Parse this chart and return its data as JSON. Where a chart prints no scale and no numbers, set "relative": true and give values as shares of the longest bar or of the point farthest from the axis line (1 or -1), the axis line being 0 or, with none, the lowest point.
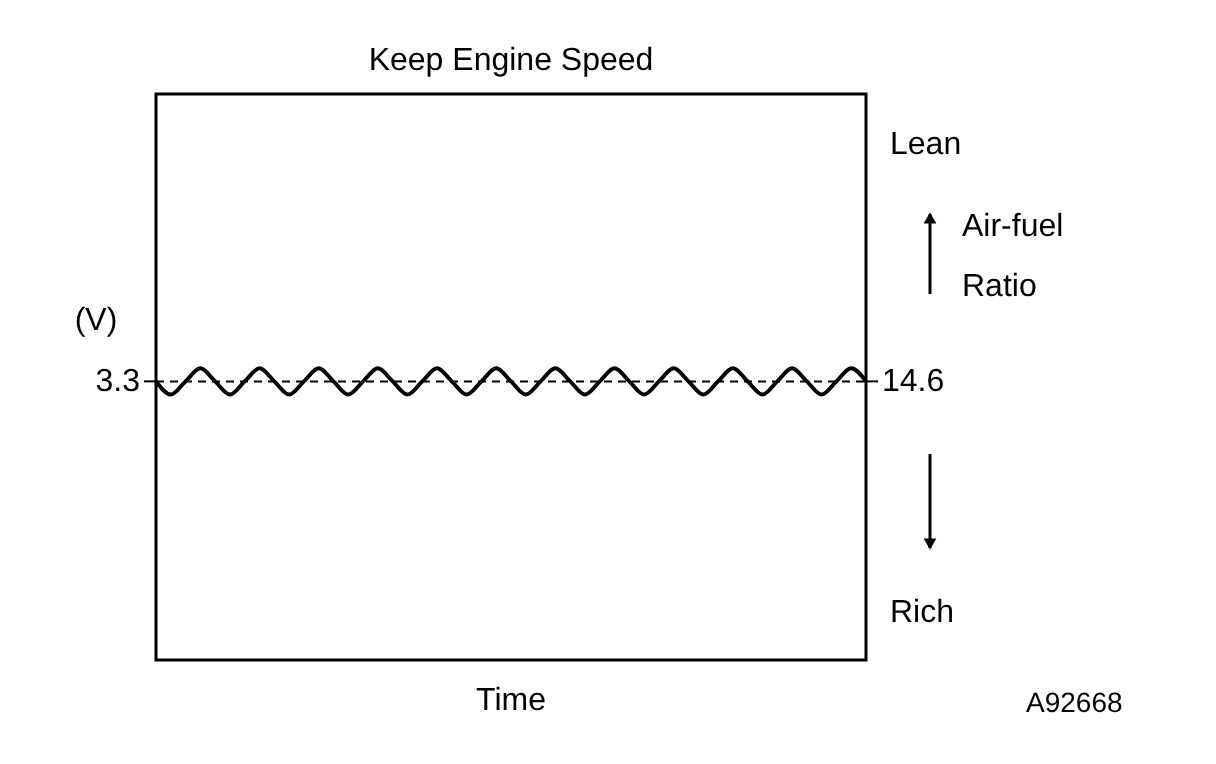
{
  "chart_data": {
    "type": "line",
    "relative": true,
    "title": "Keep Engine Speed",
    "xlabel": "Time",
    "ylabel": "(V)",
    "color": "#000000",
    "line_style": "solid",
    "marker": "none",
    "grid": false,
    "categories": [
      null,
      null,
      null,
      null,
      null,
      null,
      null,
      null,
      null,
      null,
      null,
      null,
      null,
      null,
      null,
      null,
      null,
      null,
      null,
      null,
      null,
      null,
      null,
      null,
      null,
      null,
      null,
      null,
      null,
      null,
      null,
      null,
      null,
      null,
      null,
      null,
      null,
      null,
      null,
      null,
      null,
      null,
      null,
      null,
      null,
      null,
      null,
      null,
      null
    ],
    "values": [
      0.955,
      0.91,
      0.955,
      1,
      0.955,
      0.91,
      0.955,
      1,
      0.955,
      0.91,
      0.955,
      1,
      0.955,
      0.91,
      0.955,
      1,
      0.955,
      0.91,
      0.955,
      1,
      0.955,
      0.91,
      0.955,
      1,
      0.955,
      0.91,
      0.955,
      1,
      0.955,
      0.91,
      0.955,
      1,
      0.955,
      0.91,
      0.955,
      1,
      0.955,
      0.91,
      0.955,
      1,
      0.955,
      0.91,
      0.955,
      1,
      0.955,
      0.91,
      0.955,
      1,
      0.955
    ],
    "ref_lines": [
      {
        "axis": "y",
        "value": 0.955,
        "line_style": "dashed",
        "color": "#000000"
      }
    ],
    "annotations": [
      "3.3",
      "14.6",
      "Lean",
      "Air-fuel Ratio",
      "Rich",
      "A92668"
    ]
  }
}
